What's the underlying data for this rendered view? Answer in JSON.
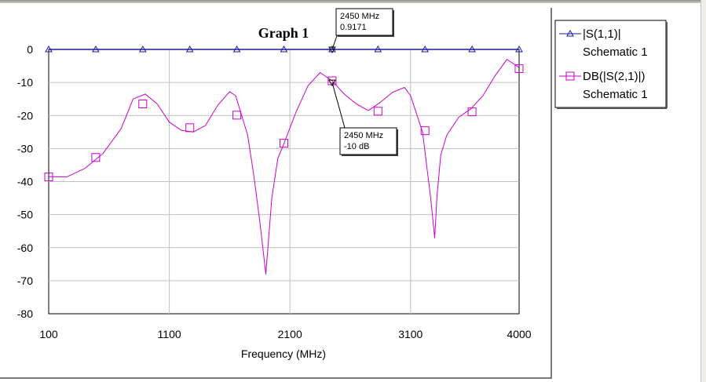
{
  "chart_data": {
    "type": "line",
    "title": "Graph 1",
    "xlabel": "Frequency (MHz)",
    "ylabel": "",
    "xlim": [
      100,
      4000
    ],
    "ylim": [
      -80,
      0
    ],
    "xticks": [
      100,
      1100,
      2100,
      3100,
      4000
    ],
    "yticks": [
      0,
      -10,
      -20,
      -30,
      -40,
      -50,
      -60,
      -70,
      -80
    ],
    "grid": true,
    "legend_position": "right",
    "series": [
      {
        "name": "|S(1,1)|",
        "subname": "Schematic 1",
        "color": "#1a1aa6",
        "marker": "triangle",
        "x": [
          100,
          4000
        ],
        "y": [
          0.9171,
          0.9171
        ],
        "marker_x": [
          100,
          490,
          880,
          1270,
          1660,
          2050,
          2450,
          2830,
          3220,
          3610,
          4000
        ]
      },
      {
        "name": "DB(|S(2,1)|)",
        "subname": "Schematic 1",
        "color": "#cc00cc",
        "marker": "square",
        "x": [
          100,
          250,
          400,
          550,
          700,
          800,
          900,
          1000,
          1100,
          1200,
          1300,
          1400,
          1500,
          1600,
          1650,
          1750,
          1800,
          1850,
          1900,
          1950,
          2000,
          2050,
          2150,
          2250,
          2350,
          2450,
          2550,
          2650,
          2750,
          2850,
          2950,
          3050,
          3100,
          3200,
          3270,
          3300,
          3320,
          3350,
          3400,
          3500,
          3600,
          3700,
          3800,
          3900,
          4000
        ],
        "y": [
          -38.5,
          -38.6,
          -36,
          -31.5,
          -24,
          -15,
          -13.5,
          -16.5,
          -22,
          -24.5,
          -25,
          -23,
          -17,
          -12.8,
          -14,
          -26,
          -38,
          -52,
          -68,
          -45,
          -33,
          -28.5,
          -19,
          -11,
          -7,
          -9.5,
          -13.5,
          -16.5,
          -18.5,
          -16,
          -13,
          -11.5,
          -14,
          -25,
          -46,
          -57,
          -44,
          -32,
          -26,
          -20.5,
          -18,
          -14,
          -8,
          -3,
          -5.5
        ],
        "marker_x": [
          100,
          490,
          880,
          1270,
          1660,
          2050,
          2450,
          2830,
          3220,
          3610,
          4000
        ],
        "marker_y": [
          -38.6,
          -32.7,
          -16.5,
          -23.7,
          -19.9,
          -28.4,
          -9.5,
          -18.7,
          -24.6,
          -18.9,
          -5.8
        ]
      }
    ],
    "annotations": [
      {
        "x": 2450,
        "y": 0.9171,
        "series": "|S(1,1)|",
        "line1": "2450 MHz",
        "line2": "0.9171",
        "plot_y": 0
      },
      {
        "x": 2450,
        "y": -10,
        "series": "DB(|S(2,1)|)",
        "line1": "2450 MHz",
        "line2": "-10 dB",
        "plot_y": -10
      }
    ]
  }
}
